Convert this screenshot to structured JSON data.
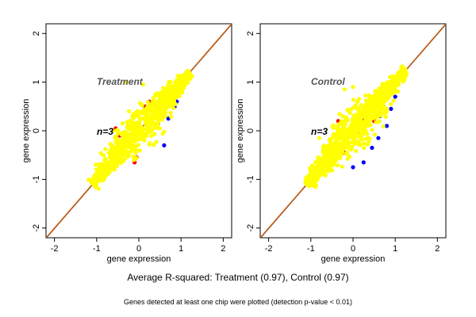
{
  "figure": {
    "summary": "Average R-squared: Treatment (0.97), Control (0.97)",
    "footnote": "Genes detected at least one chip were plotted (detection p-value < 0.01)"
  },
  "colors": {
    "point_fill": "#ffff00",
    "outlier_up": "#ff0000",
    "outlier_down": "#0000ff",
    "identity_line": "#e07020",
    "fit_line": "#8b4513"
  },
  "chart_data": [
    {
      "type": "scatter",
      "title": "Treatment",
      "annotation": "n=3",
      "xlabel": "gene expression",
      "ylabel": "gene expression",
      "xlim": [
        -2.2,
        2.2
      ],
      "ylim": [
        -2.2,
        2.2
      ],
      "xticks": [
        -2,
        -1,
        0,
        1,
        2
      ],
      "yticks": [
        -2,
        -1,
        0,
        1,
        2
      ],
      "reference_line": "y = x",
      "grid": false,
      "cloud": {
        "x_range": [
          -1.1,
          1.2
        ],
        "spread": 0.18,
        "orientation": "along y = x"
      },
      "series": [
        {
          "color": "yellow",
          "points": [
            [
              -1.05,
              -1.05
            ],
            [
              -0.8,
              -0.7
            ],
            [
              -0.5,
              -0.55
            ],
            [
              0.0,
              0.05
            ],
            [
              0.4,
              0.45
            ],
            [
              0.8,
              0.85
            ],
            [
              1.15,
              1.15
            ],
            [
              -0.3,
              1.0
            ],
            [
              0.1,
              0.95
            ],
            [
              -0.6,
              0.0
            ]
          ]
        },
        {
          "color": "red",
          "points": [
            [
              -0.55,
              0.05
            ],
            [
              -0.45,
              -0.1
            ],
            [
              0.15,
              0.5
            ],
            [
              -0.1,
              -0.65
            ],
            [
              -0.6,
              -0.7
            ],
            [
              0.55,
              0.75
            ],
            [
              -0.05,
              -0.55
            ],
            [
              0.25,
              0.6
            ]
          ]
        },
        {
          "color": "blue",
          "points": [
            [
              0.55,
              0.35
            ],
            [
              0.85,
              0.5
            ],
            [
              0.6,
              -0.3
            ],
            [
              0.45,
              0.15
            ],
            [
              -0.8,
              -0.75
            ],
            [
              0.9,
              0.6
            ],
            [
              0.7,
              0.25
            ]
          ]
        }
      ]
    },
    {
      "type": "scatter",
      "title": "Control",
      "annotation": "n=3",
      "xlabel": "gene expression",
      "ylabel": "gene expression",
      "xlim": [
        -2.2,
        2.2
      ],
      "ylim": [
        -2.2,
        2.2
      ],
      "xticks": [
        -2,
        -1,
        0,
        1,
        2
      ],
      "yticks": [
        -2,
        -1,
        0,
        1,
        2
      ],
      "reference_line": "y = x",
      "grid": false,
      "cloud": {
        "x_range": [
          -1.1,
          1.25
        ],
        "spread": 0.2,
        "orientation": "along y = x"
      },
      "series": [
        {
          "color": "yellow",
          "points": [
            [
              -1.05,
              -1.05
            ],
            [
              -0.75,
              -0.7
            ],
            [
              -0.4,
              -0.4
            ],
            [
              0.0,
              0.05
            ],
            [
              0.45,
              0.5
            ],
            [
              0.85,
              0.9
            ],
            [
              1.2,
              1.2
            ],
            [
              -0.2,
              0.85
            ],
            [
              0.0,
              0.9
            ],
            [
              -0.8,
              -0.15
            ]
          ]
        },
        {
          "color": "red",
          "points": [
            [
              -0.35,
              0.2
            ],
            [
              0.05,
              0.5
            ],
            [
              -0.65,
              -0.55
            ],
            [
              0.5,
              0.2
            ],
            [
              0.1,
              -0.05
            ],
            [
              -0.2,
              -0.45
            ]
          ]
        },
        {
          "color": "blue",
          "points": [
            [
              0.0,
              -0.75
            ],
            [
              0.25,
              -0.65
            ],
            [
              0.45,
              -0.35
            ],
            [
              0.6,
              -0.15
            ],
            [
              0.8,
              0.1
            ],
            [
              1.0,
              0.7
            ],
            [
              0.65,
              0.3
            ],
            [
              -0.15,
              -0.45
            ],
            [
              0.9,
              0.45
            ]
          ]
        }
      ]
    }
  ]
}
